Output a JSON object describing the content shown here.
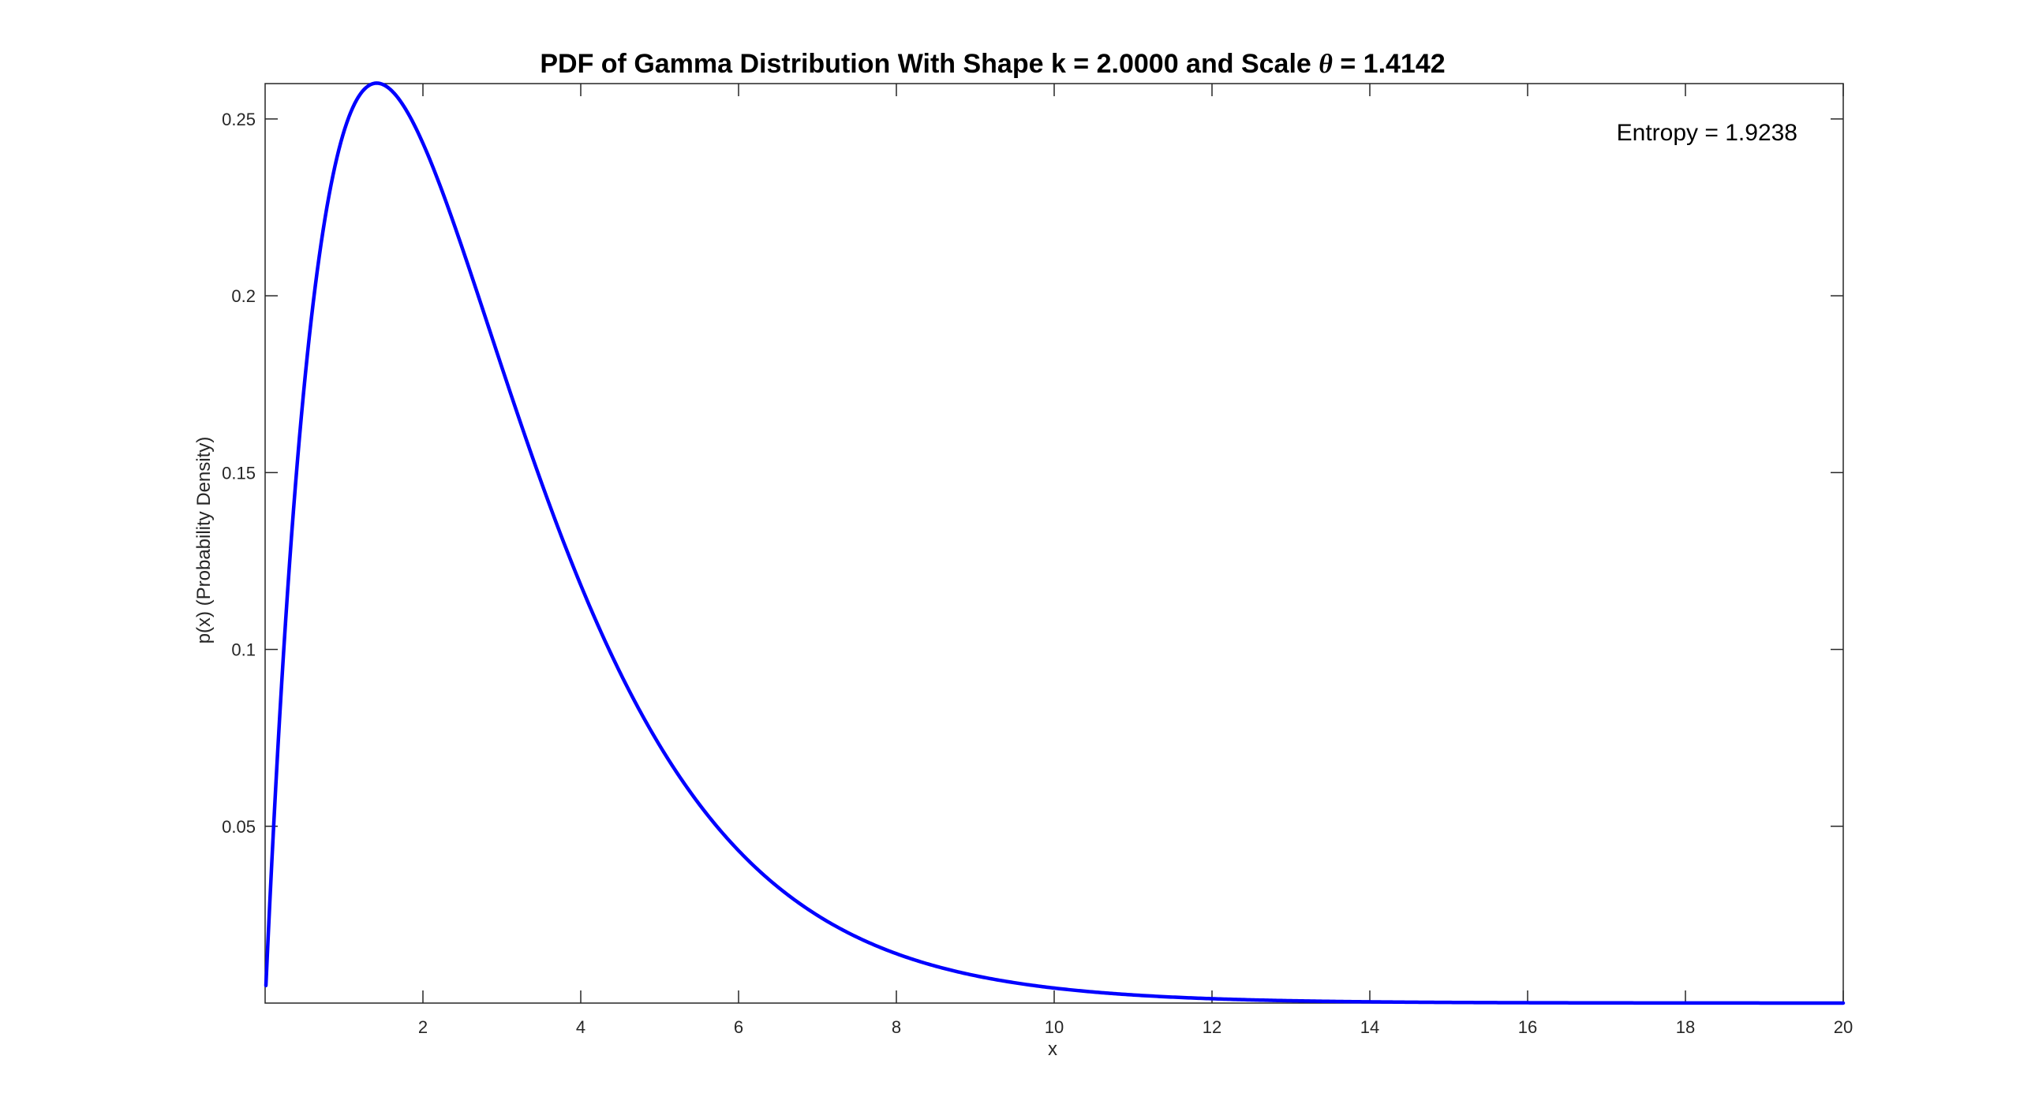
{
  "chart_data": {
    "type": "line",
    "title": {
      "prefix": "PDF of Gamma Distribution With Shape k = 2.0000 and Scale ",
      "symbol": "θ",
      "suffix": " = 1.4142"
    },
    "xlabel": "x",
    "ylabel": "p(x) (Probability Density)",
    "xlim": [
      0,
      20
    ],
    "ylim": [
      0,
      0.26
    ],
    "x_ticks": [
      2,
      4,
      6,
      8,
      10,
      12,
      14,
      16,
      18,
      20
    ],
    "x_tick_labels": [
      "2",
      "4",
      "6",
      "8",
      "10",
      "12",
      "14",
      "16",
      "18",
      "20"
    ],
    "y_ticks": [
      0.05,
      0.1,
      0.15,
      0.2,
      0.25
    ],
    "y_tick_labels": [
      "0.05",
      "0.1",
      "0.15",
      "0.2",
      "0.25"
    ],
    "grid": false,
    "annotation": "Entropy = 1.9238",
    "distribution": {
      "family": "gamma",
      "shape_k": 2.0,
      "scale_theta": 1.4142
    },
    "series": [
      {
        "line_color": "#0000ff",
        "x": [
          0.01,
          0.1,
          0.25,
          0.5,
          0.75,
          1.0,
          1.25,
          1.4142,
          1.75,
          2.0,
          2.5,
          3.0,
          3.5,
          4.0,
          4.5,
          5.0,
          5.5,
          6.0,
          7.0,
          8.0,
          9.0,
          10.0,
          11.0,
          12.0,
          13.0,
          14.0,
          15.0,
          16.0,
          17.0,
          18.0,
          19.0,
          20.0
        ],
        "y": [
          0.005,
          0.0466,
          0.1047,
          0.1756,
          0.2203,
          0.2466,
          0.2597,
          0.2601,
          0.2543,
          0.2429,
          0.2148,
          0.1807,
          0.148,
          0.1184,
          0.0934,
          0.0724,
          0.0554,
          0.0429,
          0.0248,
          0.014,
          0.0078,
          0.0043,
          0.0023,
          0.0013,
          0.0007,
          0.0004,
          0.0002,
          0.0001,
          0.0,
          0.0,
          0.0,
          0.0
        ]
      }
    ]
  }
}
